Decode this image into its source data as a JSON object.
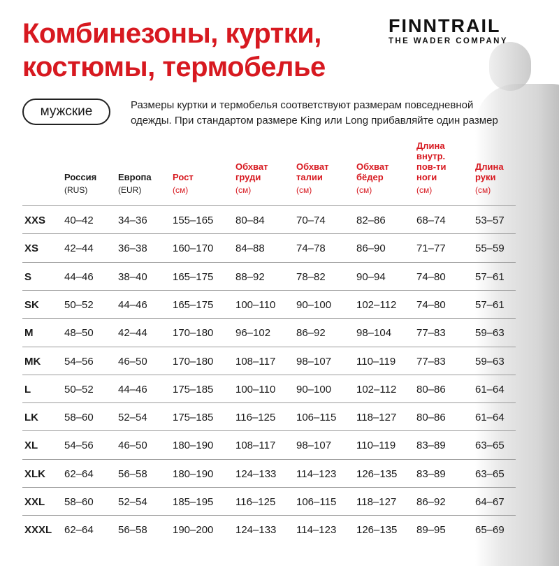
{
  "title_lines": [
    "Комбинезоны, куртки,",
    "костюмы, термобелье"
  ],
  "logo": {
    "brand": "FINNTRAIL",
    "tagline": "THE WADER COMPANY"
  },
  "gender_label": "мужские",
  "note_lines": [
    "Размеры куртки и термобелья соответствуют размерам повседневной",
    "одежды. При стандартом размере King или Long прибавляйте один размер"
  ],
  "colors": {
    "accent": "#d71920",
    "text": "#1a1a1a"
  },
  "columns": [
    {
      "lines": [
        "Россия"
      ],
      "unit": "(RUS)",
      "red": false
    },
    {
      "lines": [
        "Европа"
      ],
      "unit": "(EUR)",
      "red": false
    },
    {
      "lines": [
        "Рост"
      ],
      "unit": "(см)",
      "red": true
    },
    {
      "lines": [
        "Обхват",
        "груди"
      ],
      "unit": "(см)",
      "red": true
    },
    {
      "lines": [
        "Обхват",
        "талии"
      ],
      "unit": "(см)",
      "red": true
    },
    {
      "lines": [
        "Обхват",
        "бёдер"
      ],
      "unit": "(см)",
      "red": true
    },
    {
      "lines": [
        "Длина",
        "внутр.",
        "пов-ти",
        "ноги"
      ],
      "unit": "(см)",
      "red": true
    },
    {
      "lines": [
        "Длина",
        "руки"
      ],
      "unit": "(см)",
      "red": true
    }
  ],
  "rows": [
    [
      "XXS",
      "40–42",
      "34–36",
      "155–165",
      "80–84",
      "70–74",
      "82–86",
      "68–74",
      "53–57"
    ],
    [
      "XS",
      "42–44",
      "36–38",
      "160–170",
      "84–88",
      "74–78",
      "86–90",
      "71–77",
      "55–59"
    ],
    [
      "S",
      "44–46",
      "38–40",
      "165–175",
      "88–92",
      "78–82",
      "90–94",
      "74–80",
      "57–61"
    ],
    [
      "SK",
      "50–52",
      "44–46",
      "165–175",
      "100–110",
      "90–100",
      "102–112",
      "74–80",
      "57–61"
    ],
    [
      "M",
      "48–50",
      "42–44",
      "170–180",
      "96–102",
      "86–92",
      "98–104",
      "77–83",
      "59–63"
    ],
    [
      "MK",
      "54–56",
      "46–50",
      "170–180",
      "108–117",
      "98–107",
      "110–119",
      "77–83",
      "59–63"
    ],
    [
      "L",
      "50–52",
      "44–46",
      "175–185",
      "100–110",
      "90–100",
      "102–112",
      "80–86",
      "61–64"
    ],
    [
      "LK",
      "58–60",
      "52–54",
      "175–185",
      "116–125",
      "106–115",
      "118–127",
      "80–86",
      "61–64"
    ],
    [
      "XL",
      "54–56",
      "46–50",
      "180–190",
      "108–117",
      "98–107",
      "110–119",
      "83–89",
      "63–65"
    ],
    [
      "XLK",
      "62–64",
      "56–58",
      "180–190",
      "124–133",
      "114–123",
      "126–135",
      "83–89",
      "63–65"
    ],
    [
      "XXL",
      "58–60",
      "52–54",
      "185–195",
      "116–125",
      "106–115",
      "118–127",
      "86–92",
      "64–67"
    ],
    [
      "XXXL",
      "62–64",
      "56–58",
      "190–200",
      "124–133",
      "114–123",
      "126–135",
      "89–95",
      "65–69"
    ]
  ]
}
